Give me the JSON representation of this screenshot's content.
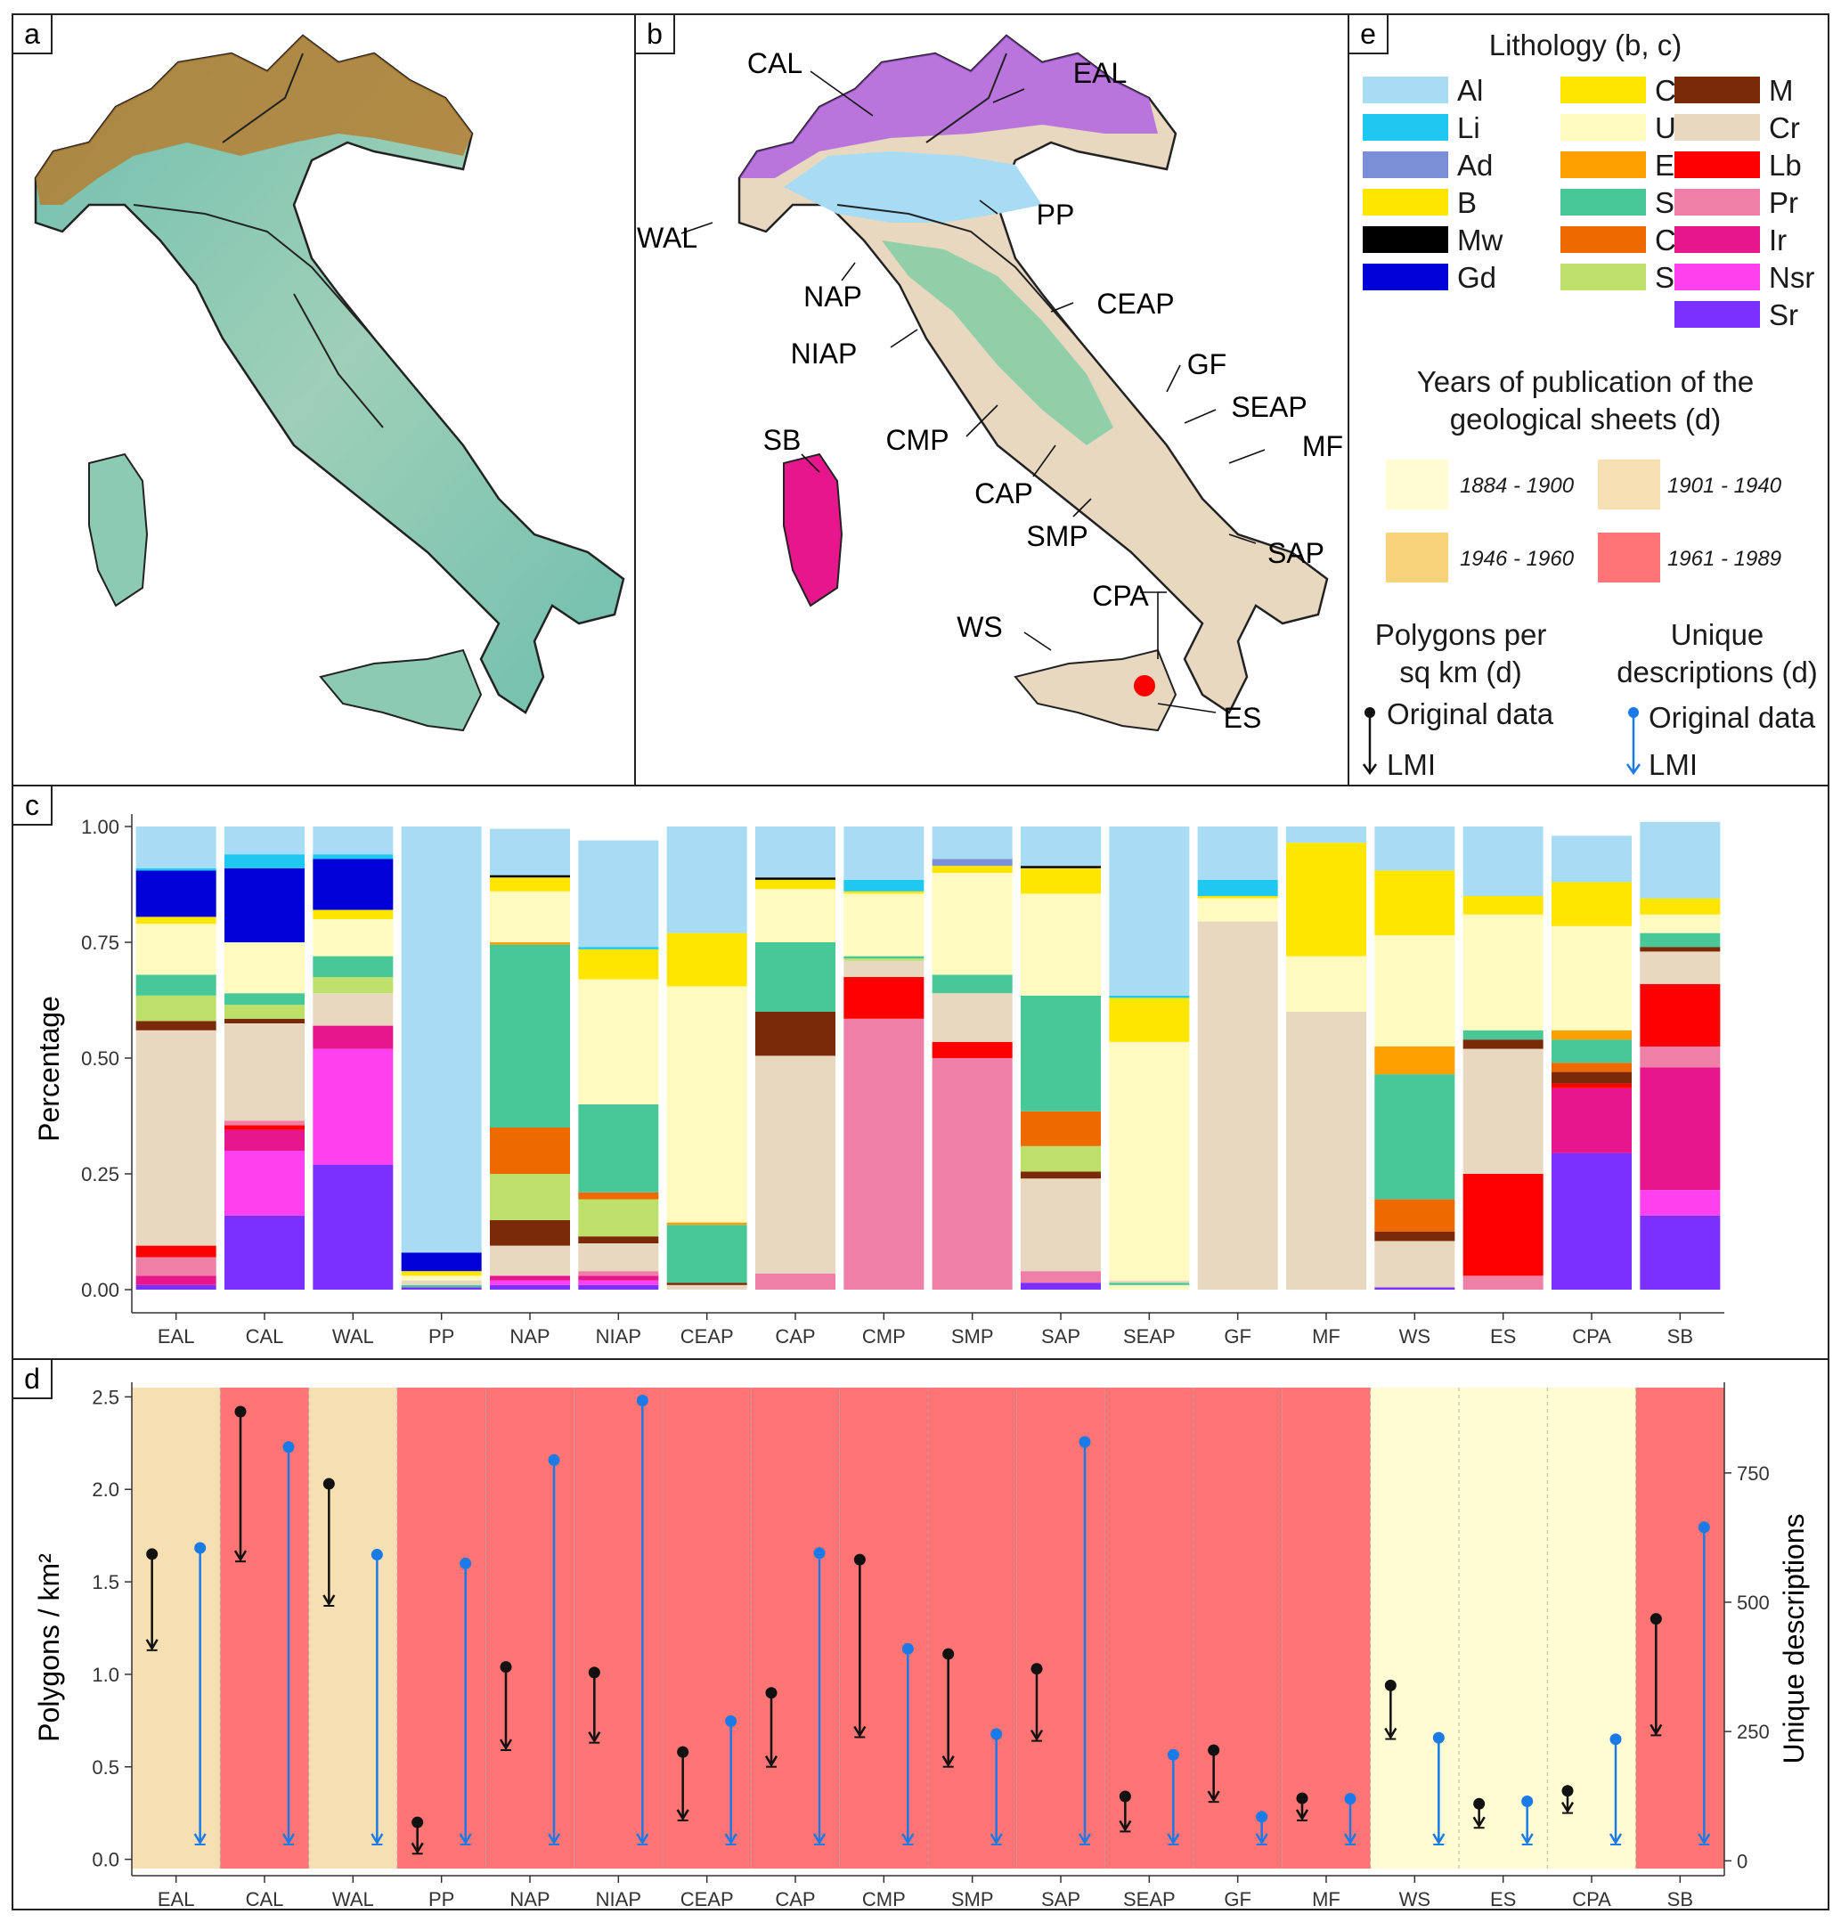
{
  "panels": {
    "a": "a",
    "b": "b",
    "c": "c",
    "d": "d",
    "e": "e"
  },
  "map_labels": {
    "CAL": "CAL",
    "EAL": "EAL",
    "WAL": "WAL",
    "PP": "PP",
    "NAP": "NAP",
    "NIAP": "NIAP",
    "CEAP": "CEAP",
    "GF": "GF",
    "SEAP": "SEAP",
    "MF": "MF",
    "SB": "SB",
    "CMP": "CMP",
    "CAP": "CAP",
    "SMP": "SMP",
    "SAP": "SAP",
    "CPA": "CPA",
    "WS": "WS",
    "ES": "ES"
  },
  "legend": {
    "lithology_title": "Lithology (b, c)",
    "lithology": [
      {
        "code": "Al",
        "color": "#a8dcf4"
      },
      {
        "code": "Li",
        "color": "#1ec8f0"
      },
      {
        "code": "Ad",
        "color": "#7b8fd6"
      },
      {
        "code": "B",
        "color": "#ffe600"
      },
      {
        "code": "Mw",
        "color": "#000000"
      },
      {
        "code": "Gd",
        "color": "#0000d8"
      },
      {
        "code": "Ccr",
        "color": "#ffe600"
      },
      {
        "code": "Ucr",
        "color": "#fffac0"
      },
      {
        "code": "E",
        "color": "#ffa000"
      },
      {
        "code": "Ssr",
        "color": "#48c896"
      },
      {
        "code": "Cm",
        "color": "#ee6a00"
      },
      {
        "code": "SM",
        "color": "#bde06a"
      },
      {
        "code": "M",
        "color": "#7a2a08"
      },
      {
        "code": "Cr",
        "color": "#e8d8c0"
      },
      {
        "code": "Lb",
        "color": "#ff0000"
      },
      {
        "code": "Pr",
        "color": "#ee80a8"
      },
      {
        "code": "Ir",
        "color": "#e8168c"
      },
      {
        "code": "Nsr",
        "color": "#ff40ee"
      },
      {
        "code": "Sr",
        "color": "#7b30ff"
      }
    ],
    "years_title_1": "Years of publication of the",
    "years_title_2": "geological sheets (d)",
    "years": [
      {
        "label": "1884 - 1900",
        "color": "#fffcd4"
      },
      {
        "label": "1901 - 1940",
        "color": "#f6dfb2"
      },
      {
        "label": "1946 - 1960",
        "color": "#f8d37c"
      },
      {
        "label": "1961 - 1989",
        "color": "#ff7474"
      }
    ],
    "polygons_title_1": "Polygons per",
    "polygons_title_2": "sq km (d)",
    "unique_title_1": "Unique",
    "unique_title_2": "descriptions (d)",
    "original": "Original data",
    "lmi": "LMI"
  },
  "chart_data": [
    {
      "type": "bar",
      "stacked": true,
      "ylabel": "Percentage",
      "ylim": [
        0,
        1
      ],
      "yticks": [
        "0.00",
        "0.25",
        "0.50",
        "0.75",
        "1.00"
      ],
      "categories": [
        "EAL",
        "CAL",
        "WAL",
        "PP",
        "NAP",
        "NIAP",
        "CEAP",
        "CAP",
        "CMP",
        "SMP",
        "SAP",
        "SEAP",
        "GF",
        "MF",
        "WS",
        "ES",
        "CPA",
        "SB"
      ],
      "stacks": [
        [
          [
            "Sr",
            0.01
          ],
          [
            "Ir",
            0.02
          ],
          [
            "Pr",
            0.04
          ],
          [
            "Lb",
            0.025
          ],
          [
            "Cr",
            0.465
          ],
          [
            "M",
            0.02
          ],
          [
            "SM",
            0.055
          ],
          [
            "Ssr",
            0.045
          ],
          [
            "Ucr",
            0.11
          ],
          [
            "Ccr",
            0.015
          ],
          [
            "Gd",
            0.1
          ],
          [
            "Li",
            0.005
          ],
          [
            "Al",
            0.09
          ]
        ],
        [
          [
            "Sr",
            0.16
          ],
          [
            "Nsr",
            0.14
          ],
          [
            "Ir",
            0.045
          ],
          [
            "Lb",
            0.01
          ],
          [
            "Pr",
            0.01
          ],
          [
            "Cr",
            0.21
          ],
          [
            "M",
            0.01
          ],
          [
            "SM",
            0.03
          ],
          [
            "Ssr",
            0.025
          ],
          [
            "Ucr",
            0.11
          ],
          [
            "Gd",
            0.16
          ],
          [
            "Li",
            0.03
          ],
          [
            "Al",
            0.06
          ]
        ],
        [
          [
            "Sr",
            0.27
          ],
          [
            "Nsr",
            0.25
          ],
          [
            "Ir",
            0.05
          ],
          [
            "Cr",
            0.07
          ],
          [
            "SM",
            0.035
          ],
          [
            "Ssr",
            0.045
          ],
          [
            "Ucr",
            0.08
          ],
          [
            "Ccr",
            0.02
          ],
          [
            "Gd",
            0.11
          ],
          [
            "Li",
            0.01
          ],
          [
            "Al",
            0.06
          ]
        ],
        [
          [
            "Sr",
            0.005
          ],
          [
            "Ssr",
            0.005
          ],
          [
            "Cr",
            0.01
          ],
          [
            "Ucr",
            0.01
          ],
          [
            "Ccr",
            0.01
          ],
          [
            "Gd",
            0.04
          ],
          [
            "Al",
            0.92
          ]
        ],
        [
          [
            "Sr",
            0.01
          ],
          [
            "Nsr",
            0.01
          ],
          [
            "Ir",
            0.01
          ],
          [
            "Cr",
            0.065
          ],
          [
            "M",
            0.055
          ],
          [
            "SM",
            0.1
          ],
          [
            "Cm",
            0.1
          ],
          [
            "Ssr",
            0.395
          ],
          [
            "E",
            0.005
          ],
          [
            "Ucr",
            0.11
          ],
          [
            "Ccr",
            0.03
          ],
          [
            "Mw",
            0.005
          ],
          [
            "Al",
            0.1
          ]
        ],
        [
          [
            "Sr",
            0.01
          ],
          [
            "Nsr",
            0.01
          ],
          [
            "Ir",
            0.01
          ],
          [
            "Pr",
            0.01
          ],
          [
            "Cr",
            0.06
          ],
          [
            "M",
            0.015
          ],
          [
            "SM",
            0.08
          ],
          [
            "Cm",
            0.015
          ],
          [
            "Ssr",
            0.19
          ],
          [
            "Ucr",
            0.27
          ],
          [
            "Ccr",
            0.065
          ],
          [
            "Li",
            0.005
          ],
          [
            "Al",
            0.23
          ]
        ],
        [
          [
            "Cr",
            0.01
          ],
          [
            "M",
            0.005
          ],
          [
            "Ssr",
            0.125
          ],
          [
            "E",
            0.005
          ],
          [
            "Ucr",
            0.51
          ],
          [
            "Ccr",
            0.115
          ],
          [
            "Al",
            0.23
          ]
        ],
        [
          [
            "Pr",
            0.035
          ],
          [
            "Cr",
            0.47
          ],
          [
            "M",
            0.095
          ],
          [
            "Ssr",
            0.15
          ],
          [
            "Ucr",
            0.115
          ],
          [
            "Ccr",
            0.02
          ],
          [
            "Mw",
            0.005
          ],
          [
            "Al",
            0.11
          ]
        ],
        [
          [
            "Pr",
            0.585
          ],
          [
            "Lb",
            0.09
          ],
          [
            "Cr",
            0.035
          ],
          [
            "SM",
            0.005
          ],
          [
            "Ssr",
            0.005
          ],
          [
            "Ucr",
            0.135
          ],
          [
            "Ccr",
            0.005
          ],
          [
            "Li",
            0.025
          ],
          [
            "Al",
            0.115
          ]
        ],
        [
          [
            "Pr",
            0.5
          ],
          [
            "Lb",
            0.035
          ],
          [
            "Cr",
            0.105
          ],
          [
            "Ssr",
            0.04
          ],
          [
            "Ucr",
            0.22
          ],
          [
            "Ccr",
            0.015
          ],
          [
            "Ad",
            0.015
          ],
          [
            "Al",
            0.07
          ]
        ],
        [
          [
            "Sr",
            0.015
          ],
          [
            "Pr",
            0.025
          ],
          [
            "Cr",
            0.2
          ],
          [
            "M",
            0.015
          ],
          [
            "SM",
            0.055
          ],
          [
            "Cm",
            0.075
          ],
          [
            "Ssr",
            0.25
          ],
          [
            "Ucr",
            0.22
          ],
          [
            "Ccr",
            0.055
          ],
          [
            "Mw",
            0.005
          ],
          [
            "Al",
            0.085
          ]
        ],
        [
          [
            "Ucr",
            0.01
          ],
          [
            "Ssr",
            0.005
          ],
          [
            "Cr",
            0.005
          ],
          [
            "Ucr",
            0.515
          ],
          [
            "Ccr",
            0.095
          ],
          [
            "Li",
            0.005
          ],
          [
            "Al",
            0.365
          ]
        ],
        [
          [
            "Cr",
            0.795
          ],
          [
            "Ucr",
            0.05
          ],
          [
            "Ccr",
            0.005
          ],
          [
            "Li",
            0.035
          ],
          [
            "Al",
            0.115
          ]
        ],
        [
          [
            "Cr",
            0.6
          ],
          [
            "Ucr",
            0.12
          ],
          [
            "Ccr",
            0.245
          ],
          [
            "Al",
            0.035
          ]
        ],
        [
          [
            "Sr",
            0.005
          ],
          [
            "Cr",
            0.1
          ],
          [
            "M",
            0.02
          ],
          [
            "Cm",
            0.07
          ],
          [
            "Ssr",
            0.27
          ],
          [
            "E",
            0.06
          ],
          [
            "Ucr",
            0.24
          ],
          [
            "Ccr",
            0.14
          ],
          [
            "Al",
            0.095
          ]
        ],
        [
          [
            "Pr",
            0.03
          ],
          [
            "Lb",
            0.22
          ],
          [
            "Cr",
            0.27
          ],
          [
            "M",
            0.02
          ],
          [
            "Ssr",
            0.02
          ],
          [
            "Ucr",
            0.25
          ],
          [
            "Ccr",
            0.04
          ],
          [
            "Al",
            0.15
          ]
        ],
        [
          [
            "Sr",
            0.295
          ],
          [
            "Ir",
            0.14
          ],
          [
            "Lb",
            0.01
          ],
          [
            "M",
            0.025
          ],
          [
            "Cm",
            0.02
          ],
          [
            "Ssr",
            0.05
          ],
          [
            "E",
            0.02
          ],
          [
            "Ucr",
            0.225
          ],
          [
            "Ccr",
            0.095
          ],
          [
            "Al",
            0.1
          ]
        ],
        [
          [
            "Sr",
            0.16
          ],
          [
            "Nsr",
            0.055
          ],
          [
            "Ir",
            0.265
          ],
          [
            "Pr",
            0.045
          ],
          [
            "Lb",
            0.135
          ],
          [
            "Cr",
            0.07
          ],
          [
            "M",
            0.01
          ],
          [
            "Ssr",
            0.03
          ],
          [
            "Ucr",
            0.04
          ],
          [
            "Ccr",
            0.035
          ],
          [
            "Al",
            0.165
          ]
        ]
      ]
    },
    {
      "type": "scatter",
      "ylabel": "Polygons / km²",
      "y2label": "Unique descriptions",
      "ylim": [
        -0.05,
        2.55
      ],
      "y2lim": [
        -15,
        915
      ],
      "yticks": [
        "0.0",
        "0.5",
        "1.0",
        "1.5",
        "2.0",
        "2.5"
      ],
      "y2ticks": [
        "0",
        "250",
        "500",
        "750"
      ],
      "categories": [
        "EAL",
        "CAL",
        "WAL",
        "PP",
        "NAP",
        "NIAP",
        "CEAP",
        "CAP",
        "CMP",
        "SMP",
        "SAP",
        "SEAP",
        "GF",
        "MF",
        "WS",
        "ES",
        "CPA",
        "SB"
      ],
      "period": [
        "1901 - 1940",
        "1961 - 1989",
        "1901 - 1940",
        "1961 - 1989",
        "1961 - 1989",
        "1961 - 1989",
        "1961 - 1989",
        "1961 - 1989",
        "1961 - 1989",
        "1961 - 1989",
        "1961 - 1989",
        "1961 - 1989",
        "1961 - 1989",
        "1961 - 1989",
        "1884 - 1900",
        "1884 - 1900",
        "1884 - 1900",
        "1961 - 1989"
      ],
      "polygons_original": [
        1.65,
        2.42,
        2.03,
        0.2,
        1.04,
        1.01,
        0.58,
        0.9,
        1.62,
        1.11,
        1.03,
        0.34,
        0.59,
        0.33,
        0.94,
        0.3,
        0.37,
        1.3
      ],
      "polygons_lmi": [
        1.14,
        1.62,
        1.38,
        0.04,
        0.6,
        0.64,
        0.22,
        0.51,
        0.67,
        0.51,
        0.65,
        0.16,
        0.32,
        0.22,
        0.66,
        0.18,
        0.26,
        0.68
      ],
      "unique_original": [
        605,
        800,
        592,
        575,
        775,
        890,
        270,
        595,
        410,
        245,
        810,
        205,
        85,
        120,
        238,
        115,
        235,
        645
      ],
      "unique_lmi": [
        35,
        35,
        35,
        35,
        35,
        35,
        35,
        35,
        35,
        35,
        35,
        35,
        35,
        35,
        35,
        35,
        35,
        35
      ]
    }
  ]
}
